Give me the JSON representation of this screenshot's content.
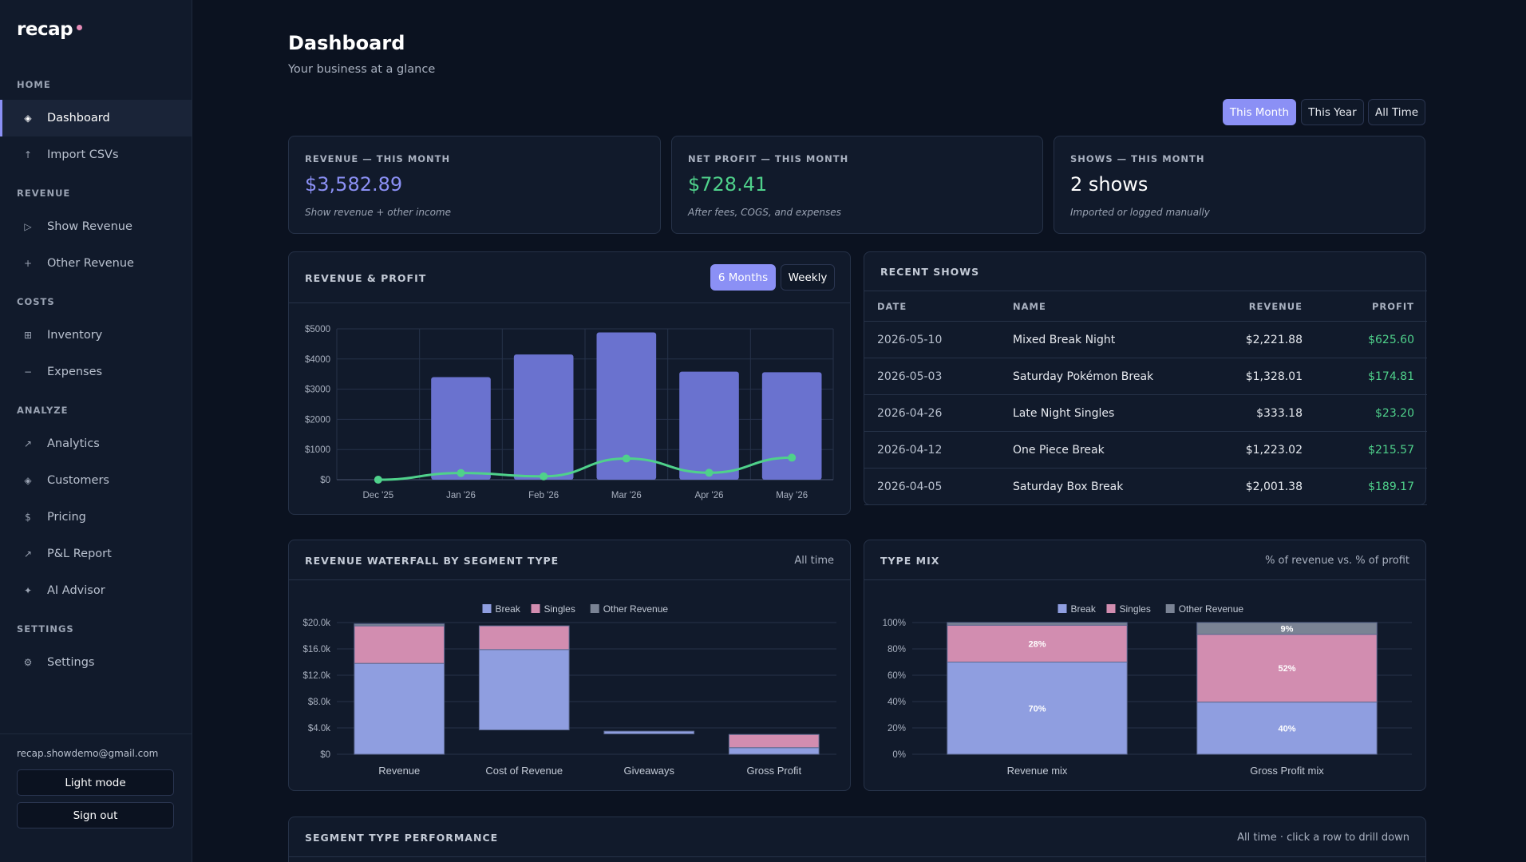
{
  "app": {
    "name": "recap"
  },
  "sidebar": {
    "sections": [
      {
        "label": "HOME",
        "items": [
          {
            "id": "dashboard",
            "label": "Dashboard",
            "icon": "◈",
            "active": true
          },
          {
            "id": "import",
            "label": "Import CSVs",
            "icon": "↑"
          }
        ]
      },
      {
        "label": "REVENUE",
        "items": [
          {
            "id": "show-revenue",
            "label": "Show Revenue",
            "icon": "▷"
          },
          {
            "id": "other-revenue",
            "label": "Other Revenue",
            "icon": "+"
          }
        ]
      },
      {
        "label": "COSTS",
        "items": [
          {
            "id": "inventory",
            "label": "Inventory",
            "icon": "⊞"
          },
          {
            "id": "expenses",
            "label": "Expenses",
            "icon": "−"
          }
        ]
      },
      {
        "label": "ANALYZE",
        "items": [
          {
            "id": "analytics",
            "label": "Analytics",
            "icon": "↗"
          },
          {
            "id": "customers",
            "label": "Customers",
            "icon": "◈"
          },
          {
            "id": "pricing",
            "label": "Pricing",
            "icon": "$"
          },
          {
            "id": "pl-report",
            "label": "P&L Report",
            "icon": "↗"
          },
          {
            "id": "ai-advisor",
            "label": "AI Advisor",
            "icon": "✦"
          }
        ]
      },
      {
        "label": "SETTINGS",
        "items": [
          {
            "id": "settings",
            "label": "Settings",
            "icon": "⚙"
          }
        ]
      }
    ],
    "email": "recap.showdemo@gmail.com",
    "light_mode_label": "Light mode",
    "sign_out_label": "Sign out"
  },
  "header": {
    "title": "Dashboard",
    "subtitle": "Your business at a glance",
    "ranges": [
      "This Month",
      "This Year",
      "All Time"
    ],
    "active_range": "This Month"
  },
  "kpis": [
    {
      "label": "REVENUE — THIS MONTH",
      "value": "$3,582.89",
      "note": "Show revenue + other income",
      "color": "#8b90f5"
    },
    {
      "label": "NET PROFIT — THIS MONTH",
      "value": "$728.41",
      "note": "After fees, COGS, and expenses",
      "color": "#4fd18b"
    },
    {
      "label": "SHOWS — THIS MONTH",
      "value": "2 shows",
      "note": "Imported or logged manually",
      "color": "#ffffff"
    }
  ],
  "revenue_profit": {
    "title": "REVENUE & PROFIT",
    "toggle": [
      "6 Months",
      "Weekly"
    ],
    "active_toggle": "6 Months"
  },
  "recent_shows": {
    "title": "RECENT SHOWS",
    "columns": [
      "DATE",
      "NAME",
      "REVENUE",
      "PROFIT"
    ],
    "rows": [
      {
        "date": "2026-05-10",
        "name": "Mixed Break Night",
        "revenue": "$2,221.88",
        "profit": "$625.60"
      },
      {
        "date": "2026-05-03",
        "name": "Saturday Pokémon Break",
        "revenue": "$1,328.01",
        "profit": "$174.81"
      },
      {
        "date": "2026-04-26",
        "name": "Late Night Singles",
        "revenue": "$333.18",
        "profit": "$23.20"
      },
      {
        "date": "2026-04-12",
        "name": "One Piece Break",
        "revenue": "$1,223.02",
        "profit": "$215.57"
      },
      {
        "date": "2026-04-05",
        "name": "Saturday Box Break",
        "revenue": "$2,001.38",
        "profit": "$189.17"
      }
    ]
  },
  "waterfall": {
    "title": "REVENUE WATERFALL BY SEGMENT TYPE",
    "right": "All time"
  },
  "type_mix": {
    "title": "TYPE MIX",
    "right": "% of revenue vs. % of profit"
  },
  "segment_perf": {
    "title": "SEGMENT TYPE PERFORMANCE",
    "right": "All time · click a row to drill down"
  },
  "chart_data": [
    {
      "id": "revenue-profit",
      "type": "bar",
      "categories": [
        "Dec '25",
        "Jan '26",
        "Feb '26",
        "Mar '26",
        "Apr '26",
        "May '26"
      ],
      "series": [
        {
          "name": "Revenue",
          "type": "bar",
          "values": [
            0,
            3400,
            4150,
            4880,
            3580,
            3560
          ],
          "color": "#6a72cf"
        },
        {
          "name": "Profit",
          "type": "line",
          "values": [
            0,
            220,
            110,
            700,
            230,
            730
          ],
          "color": "#4fd18b"
        }
      ],
      "ylim": [
        0,
        5000
      ],
      "yticks": [
        "$0",
        "$1000",
        "$2000",
        "$3000",
        "$4000",
        "$5000"
      ],
      "legend": "top",
      "grid": true
    },
    {
      "id": "waterfall",
      "type": "bar",
      "categories": [
        "Revenue",
        "Cost of Revenue",
        "Giveaways",
        "Gross Profit"
      ],
      "series": [
        {
          "name": "Break",
          "color": "#8f9ee0",
          "values": [
            [
              0,
              13800
            ],
            [
              3700,
              15900
            ],
            [
              3100,
              3500
            ],
            [
              0,
              1000
            ]
          ]
        },
        {
          "name": "Singles",
          "color": "#d28db0",
          "values": [
            [
              13800,
              19500
            ],
            [
              15900,
              19500
            ],
            null,
            [
              1000,
              3000
            ]
          ]
        },
        {
          "name": "Other Revenue",
          "color": "#7a8394",
          "values": [
            [
              19500,
              19800
            ],
            null,
            null,
            null
          ]
        }
      ],
      "ylim": [
        0,
        20000
      ],
      "yticks": [
        "$0",
        "$4.0k",
        "$8.0k",
        "$12.0k",
        "$16.0k",
        "$20.0k"
      ],
      "legend": "top",
      "grid": true
    },
    {
      "id": "type-mix",
      "type": "bar",
      "categories": [
        "Revenue mix",
        "Gross Profit mix"
      ],
      "series": [
        {
          "name": "Break",
          "color": "#8f9ee0",
          "values": [
            70,
            40
          ],
          "labels": [
            "70%",
            "40%"
          ]
        },
        {
          "name": "Singles",
          "color": "#d28db0",
          "values": [
            28,
            52
          ],
          "labels": [
            "28%",
            "52%"
          ]
        },
        {
          "name": "Other Revenue",
          "color": "#7a8394",
          "values": [
            2,
            9
          ],
          "labels": [
            "",
            "9%"
          ]
        }
      ],
      "ylim": [
        0,
        100
      ],
      "yticks": [
        "0%",
        "20%",
        "40%",
        "60%",
        "80%",
        "100%"
      ],
      "legend": "top",
      "grid": true
    }
  ]
}
